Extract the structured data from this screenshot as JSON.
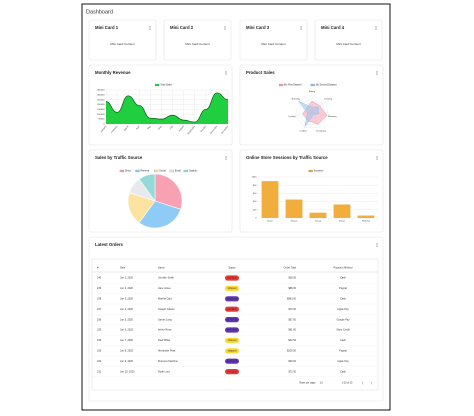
{
  "header": {
    "title": "Dashboard"
  },
  "mini_cards": [
    {
      "title": "Mini Card 1",
      "content": "Mini Card Content"
    },
    {
      "title": "Mini Card 2",
      "content": "Mini Card Content"
    },
    {
      "title": "Mini Card 3",
      "content": "Mini Card Content"
    },
    {
      "title": "Mini Card 4",
      "content": "Mini Card Content"
    }
  ],
  "chart_data": [
    {
      "type": "line",
      "title": "Monthly Revenue",
      "fill": true,
      "grid": true,
      "categories": [
        "January",
        "February",
        "March",
        "April",
        "May",
        "June",
        "July",
        "August",
        "September",
        "October",
        "November",
        "December"
      ],
      "series": [
        {
          "name": "Total Sales",
          "color": "#1fcf3f",
          "values": [
            230000,
            120000,
            290000,
            190000,
            60000,
            50000,
            90000,
            40000,
            20000,
            150000,
            320000,
            250000
          ]
        }
      ],
      "ylim": [
        0,
        350000
      ],
      "yticks": [
        0,
        50000,
        100000,
        150000,
        200000,
        250000,
        300000,
        350000
      ]
    },
    {
      "type": "radar",
      "title": "Product Sales",
      "categories": [
        "Eating",
        "Drinking",
        "Sleeping",
        "Designing",
        "Coding",
        "Cycling",
        "Running"
      ],
      "series": [
        {
          "name": "My First Dataset",
          "color": "#f59ab0",
          "values": [
            65,
            59,
            90,
            81,
            56,
            55,
            40
          ]
        },
        {
          "name": "My Second Dataset",
          "color": "#8cc6ef",
          "values": [
            28,
            48,
            40,
            19,
            96,
            27,
            100
          ]
        }
      ],
      "rlim": [
        0,
        100
      ]
    },
    {
      "type": "pie",
      "title": "Sales by Traffic Source",
      "categories": [
        "Direct",
        "Referral",
        "Social",
        "Email",
        "Organic"
      ],
      "colors": [
        "#f7a1b3",
        "#8ecbf5",
        "#fde3a1",
        "#e7e9ed",
        "#95d9d9"
      ],
      "values": [
        30,
        30,
        20,
        10,
        10
      ]
    },
    {
      "type": "bar",
      "title": "Online Store Sessions by Traffic Source",
      "grid": true,
      "categories": [
        "Direct",
        "Search",
        "Social",
        "Email",
        "Referral"
      ],
      "series": [
        {
          "name": "Sessions",
          "color": "#f2ae3d",
          "values": [
            900,
            450,
            130,
            330,
            60
          ]
        }
      ],
      "ylim": [
        0,
        1000
      ],
      "yticks": [
        0,
        200,
        400,
        600,
        800,
        1000
      ]
    }
  ],
  "orders": {
    "title": "Latest Orders",
    "columns": [
      "#",
      "Date",
      "Name",
      "Status",
      "Order Total",
      "Payment Method"
    ],
    "rows": [
      [
        "240",
        "Jun 1, 2020",
        "Jennifer Smith",
        "pending",
        "$38.00",
        "Cash"
      ],
      [
        "239",
        "Jun 2, 2020",
        "Jane Jones",
        "shipped",
        "$88.00",
        "Paypal"
      ],
      [
        "238",
        "Jun 3, 2020",
        "Martha Card",
        "delivered",
        "$863.00",
        "Cash"
      ],
      [
        "237",
        "Jun 4, 2020",
        "Joseph Gibson",
        "pending",
        "$70.00",
        "Apple Pay"
      ],
      [
        "236",
        "Jun 5, 2020",
        "James Long",
        "delivered",
        "$57.00",
        "Google Pay"
      ],
      [
        "235",
        "Jun 6, 2020",
        "Arthur Rose",
        "delivered",
        "$61.00",
        "Store Credit"
      ],
      [
        "234",
        "Jun 7, 2020",
        "Paul White",
        "shipped",
        "$42.50",
        "Cash"
      ],
      [
        "233",
        "Jun 8, 2020",
        "Alexander Pratt",
        "shipped",
        "$209.00",
        "Paypal"
      ],
      [
        "232",
        "Jun 9, 2020",
        "Florence Machine",
        "delivered",
        "$30.00",
        "Apple Pay"
      ],
      [
        "231",
        "Jun 10, 2020",
        "Noah Lord",
        "pending",
        "$72.00",
        "Cash"
      ]
    ],
    "status_colors": {
      "pending": "#e53935",
      "shipped": "#fdd835",
      "delivered": "#5e35b1"
    },
    "status_text_colors": {
      "pending": "#fff",
      "shipped": "#222",
      "delivered": "#fff"
    },
    "pagination": {
      "rows_per_page_label": "Rows per page:",
      "rows_per_page": "10",
      "range": "1-10 of 10"
    }
  }
}
